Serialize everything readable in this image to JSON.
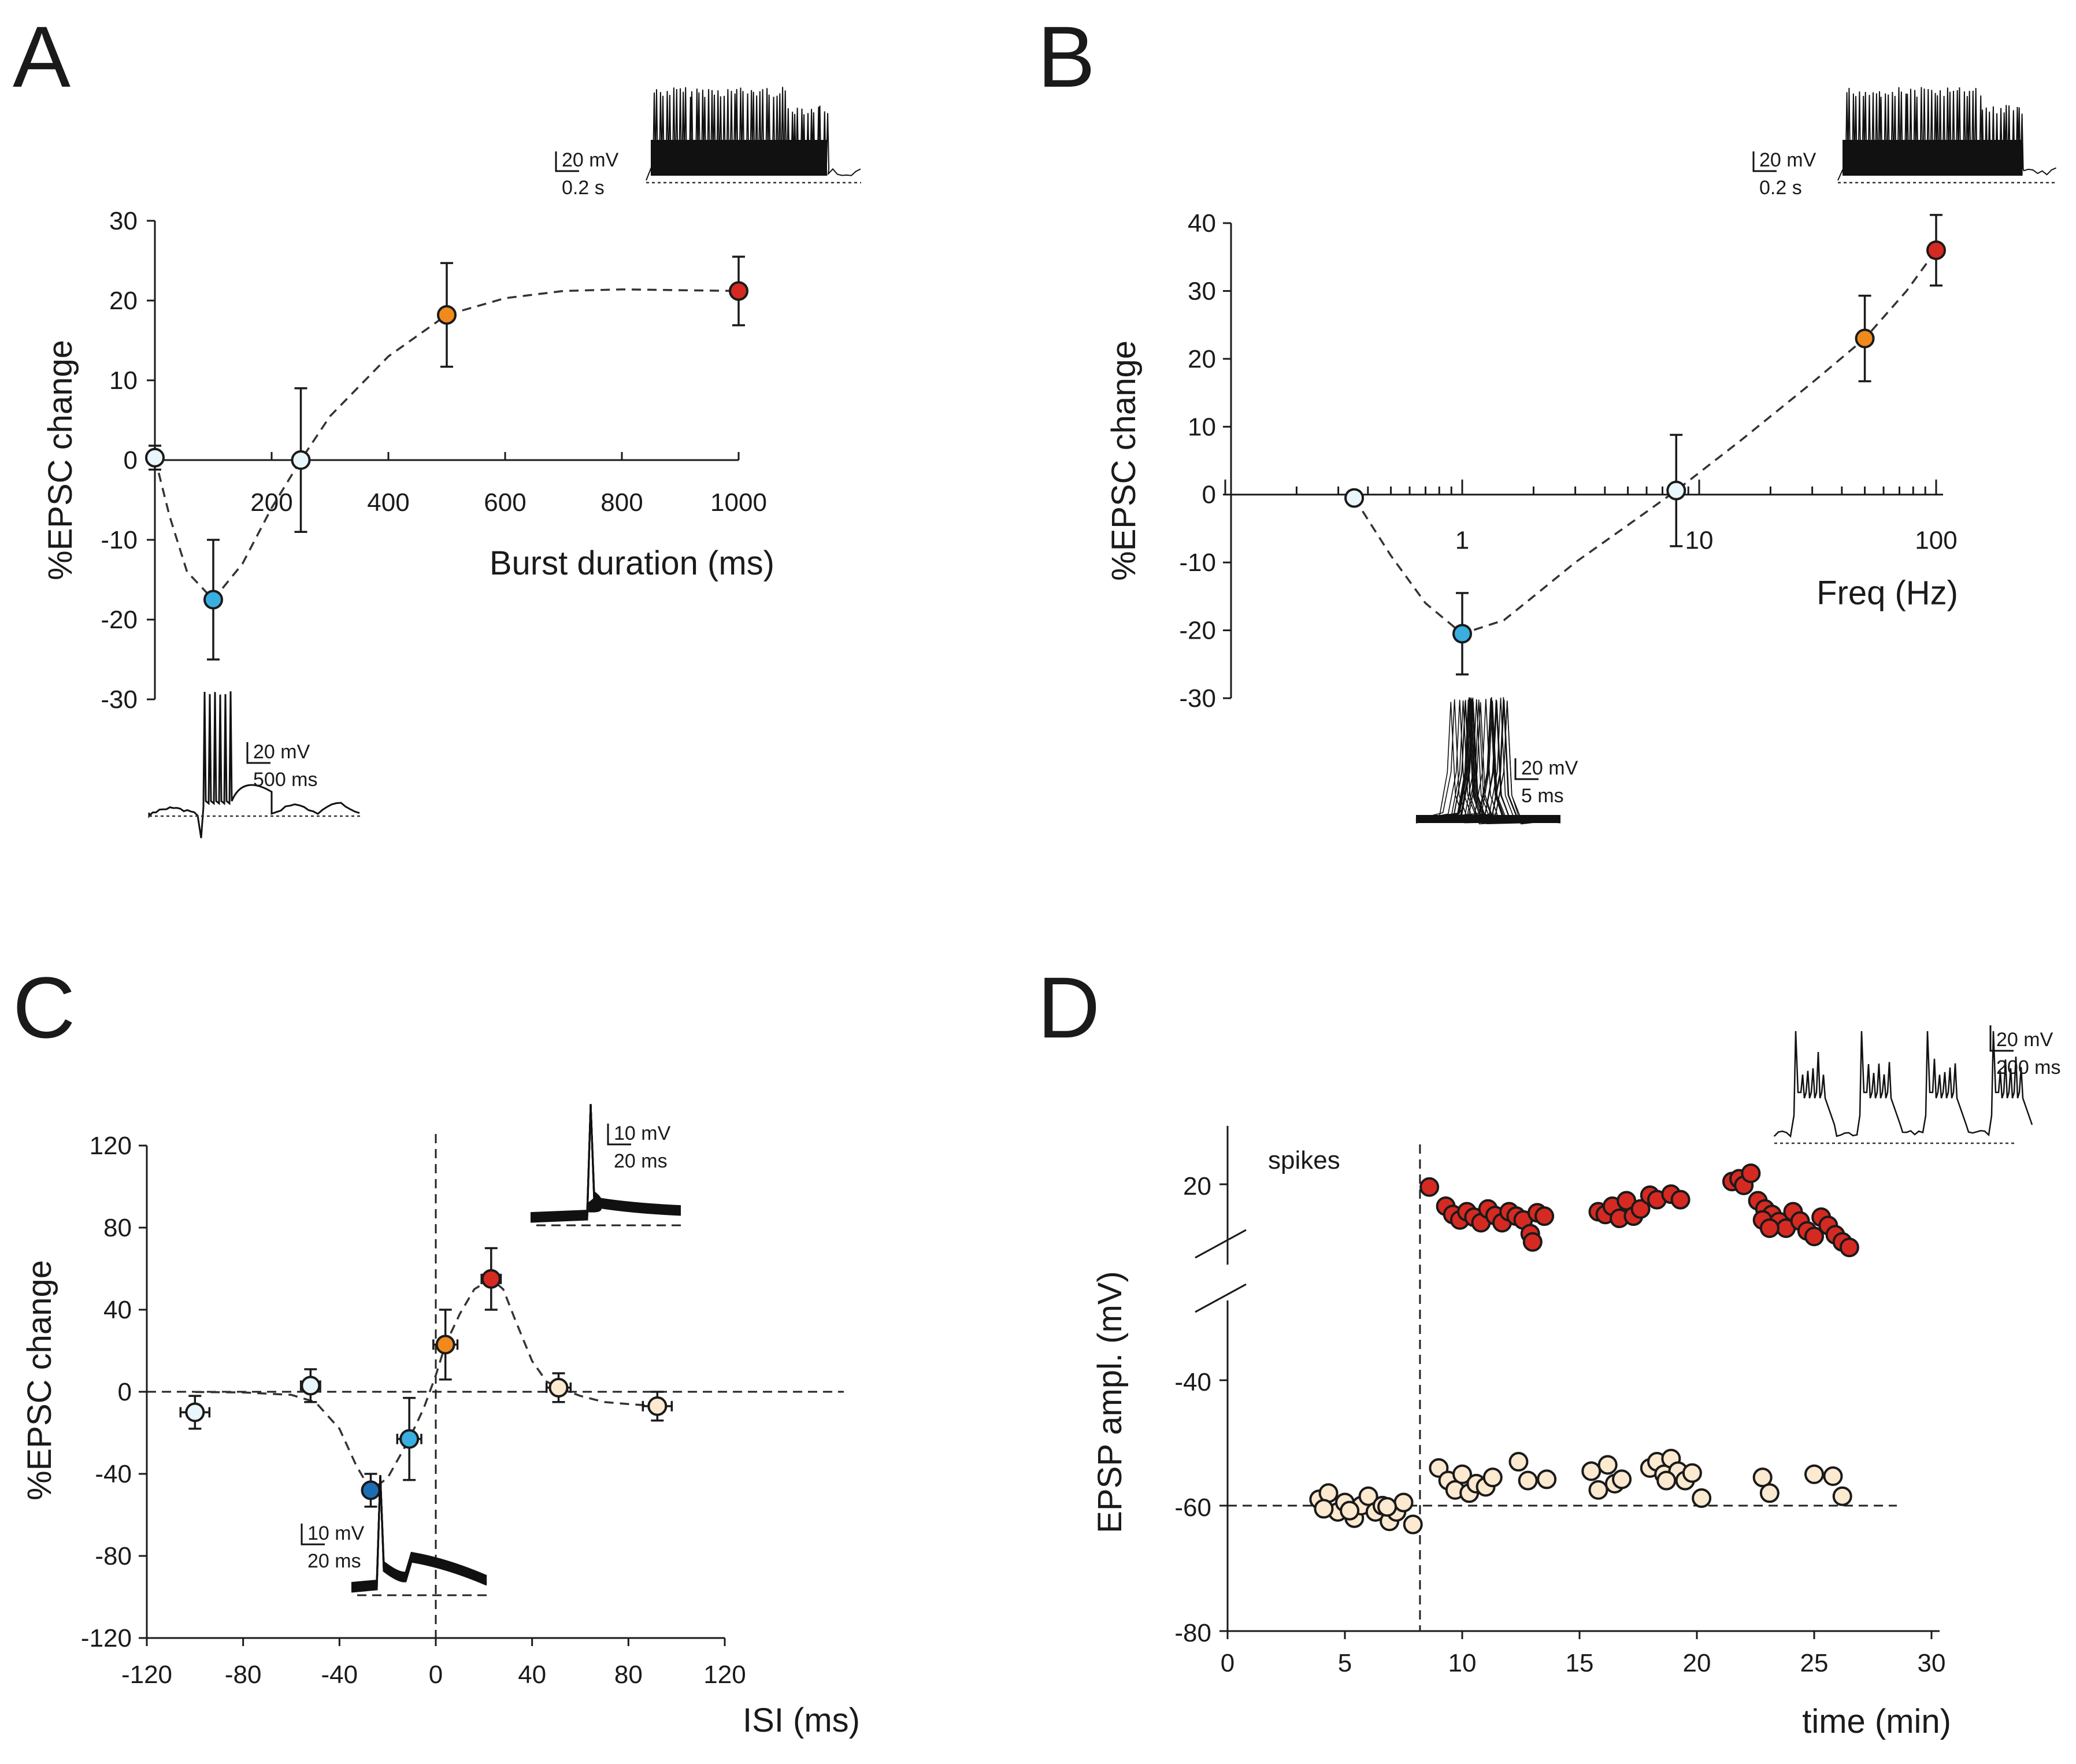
{
  "colors": {
    "red": "#d52a22",
    "orange": "#f08a1c",
    "light_blue": "#3aaee0",
    "dark_blue": "#1d6db4",
    "pale_blue": "#e9f6fb",
    "beige": "#fbe9d0",
    "ink": "#1a1a1a"
  },
  "chart_data": [
    {
      "panel": "A",
      "type": "scatter",
      "xlabel": "Burst duration (ms)",
      "ylabel": "%EPSC change",
      "xlim": [
        0,
        1000
      ],
      "ylim": [
        -30,
        30
      ],
      "x_ticks": [
        "200",
        "400",
        "600",
        "800",
        "1000"
      ],
      "y_ticks": [
        "30",
        "20",
        "10",
        "0",
        "-10",
        "-20",
        "-30"
      ],
      "points": [
        {
          "x": 0,
          "y": 0.3,
          "err": 1.5,
          "color": "pale_blue"
        },
        {
          "x": 100,
          "y": -17.5,
          "err": 7.5,
          "color": "light_blue"
        },
        {
          "x": 250,
          "y": 0,
          "err": 9,
          "color": "pale_blue"
        },
        {
          "x": 500,
          "y": 18.2,
          "err": 6.5,
          "color": "orange"
        },
        {
          "x": 1000,
          "y": 21.2,
          "err": 4.3,
          "color": "red"
        }
      ],
      "fit": [
        [
          0,
          0.3
        ],
        [
          25,
          -7
        ],
        [
          55,
          -14
        ],
        [
          100,
          -17.5
        ],
        [
          150,
          -13
        ],
        [
          200,
          -6
        ],
        [
          250,
          0
        ],
        [
          300,
          5.5
        ],
        [
          400,
          13
        ],
        [
          500,
          18.2
        ],
        [
          600,
          20.3
        ],
        [
          700,
          21.2
        ],
        [
          800,
          21.4
        ],
        [
          900,
          21.3
        ],
        [
          1000,
          21.2
        ]
      ],
      "insets": [
        {
          "scale_voltage": "20 mV",
          "scale_time": "0.2 s"
        },
        {
          "scale_voltage": "20 mV",
          "scale_time": "500 ms"
        }
      ]
    },
    {
      "panel": "B",
      "type": "scatter",
      "xscale": "log",
      "xlabel": "Freq (Hz)",
      "ylabel": "%EPSC change",
      "xlim": [
        0.1,
        100
      ],
      "ylim": [
        -30,
        40
      ],
      "x_ticks": [
        "1",
        "10",
        "100"
      ],
      "y_ticks": [
        "40",
        "30",
        "20",
        "10",
        "0",
        "-10",
        "-20",
        "-30"
      ],
      "points": [
        {
          "x": 0.35,
          "y": -0.5,
          "err": 1,
          "color": "pale_blue"
        },
        {
          "x": 1,
          "y": -20.5,
          "err": 6,
          "color": "light_blue"
        },
        {
          "x": 8,
          "y": 0.6,
          "err": 8.2,
          "color": "pale_blue"
        },
        {
          "x": 50,
          "y": 23,
          "err": 6.3,
          "color": "orange"
        },
        {
          "x": 100,
          "y": 36,
          "err": 5.2,
          "color": "red"
        }
      ],
      "fit": [
        [
          0.35,
          -0.5
        ],
        [
          0.5,
          -9
        ],
        [
          0.7,
          -16
        ],
        [
          1,
          -20.5
        ],
        [
          1.5,
          -18.5
        ],
        [
          2,
          -15
        ],
        [
          3,
          -10
        ],
        [
          5,
          -4.5
        ],
        [
          8,
          0.6
        ],
        [
          15,
          8
        ],
        [
          30,
          16.5
        ],
        [
          50,
          23
        ],
        [
          75,
          30
        ],
        [
          100,
          36
        ]
      ],
      "insets": [
        {
          "scale_voltage": "20 mV",
          "scale_time": "0.2 s"
        },
        {
          "scale_voltage": "20 mV",
          "scale_time": "5 ms"
        }
      ]
    },
    {
      "panel": "C",
      "type": "scatter",
      "xlabel": "ISI (ms)",
      "ylabel": "%EPSC change",
      "xlim": [
        -120,
        120
      ],
      "ylim": [
        -120,
        120
      ],
      "x_ticks": [
        "-120",
        "-80",
        "-40",
        "0",
        "40",
        "80",
        "120"
      ],
      "y_ticks": [
        "120",
        "80",
        "40",
        "0",
        "-40",
        "-80",
        "-120"
      ],
      "points": [
        {
          "x": -100,
          "y": -10,
          "xerr": 6,
          "err": 8,
          "color": "pale_blue"
        },
        {
          "x": -52,
          "y": 3,
          "xerr": 4,
          "err": 8,
          "color": "pale_blue"
        },
        {
          "x": -27,
          "y": -48,
          "xerr": 3,
          "err": 8,
          "color": "dark_blue"
        },
        {
          "x": -11,
          "y": -23,
          "xerr": 5,
          "err": 20,
          "color": "light_blue"
        },
        {
          "x": 4,
          "y": 23,
          "xerr": 5,
          "err": 17,
          "color": "orange"
        },
        {
          "x": 23,
          "y": 55,
          "xerr": 4,
          "err": 15,
          "color": "red"
        },
        {
          "x": 51,
          "y": 2,
          "xerr": 5,
          "err": 7,
          "color": "beige"
        },
        {
          "x": 92,
          "y": -7,
          "xerr": 6,
          "err": 7,
          "color": "beige"
        }
      ],
      "fit": [
        [
          -100,
          -0.1
        ],
        [
          -80,
          -0.3
        ],
        [
          -60,
          -1.5
        ],
        [
          -50,
          -5
        ],
        [
          -40,
          -18
        ],
        [
          -33,
          -36
        ],
        [
          -27,
          -48
        ],
        [
          -20,
          -42
        ],
        [
          -11,
          -23
        ],
        [
          -5,
          -8
        ],
        [
          0,
          8
        ],
        [
          4,
          23
        ],
        [
          10,
          38
        ],
        [
          16,
          50
        ],
        [
          23,
          55
        ],
        [
          28,
          50
        ],
        [
          33,
          35
        ],
        [
          40,
          15
        ],
        [
          46,
          5
        ],
        [
          51,
          2
        ],
        [
          60,
          -2
        ],
        [
          70,
          -5
        ],
        [
          80,
          -6
        ],
        [
          92,
          -7
        ]
      ],
      "reference_lines": {
        "y": 0,
        "x": 0
      },
      "insets": [
        {
          "scale_voltage": "10 mV",
          "scale_time": "20 ms"
        },
        {
          "scale_voltage": "10 mV",
          "scale_time": "20 ms"
        }
      ]
    },
    {
      "panel": "D",
      "type": "scatter",
      "xlabel": "time (min)",
      "ylabel": "EPSP ampl. (mV)",
      "xlim": [
        0,
        30
      ],
      "broken_y_axis": true,
      "y_ticks": [
        "20",
        "-40",
        "-60",
        "-80"
      ],
      "annotation": "spikes",
      "event_time": 8.2,
      "baseline_mV": -60,
      "series": [
        {
          "name": "spike peaks",
          "color": "red",
          "points": [
            [
              8.6,
              19.5
            ],
            [
              9.3,
              16
            ],
            [
              9.6,
              14.5
            ],
            [
              9.9,
              13.5
            ],
            [
              10.2,
              15
            ],
            [
              10.5,
              14
            ],
            [
              10.8,
              13
            ],
            [
              11.1,
              15.5
            ],
            [
              11.4,
              14.3
            ],
            [
              11.7,
              13
            ],
            [
              12.0,
              15
            ],
            [
              12.3,
              14.2
            ],
            [
              12.6,
              13.5
            ],
            [
              12.9,
              11
            ],
            [
              13.2,
              14.8
            ],
            [
              13.5,
              14.2
            ],
            [
              13.0,
              9.5
            ],
            [
              15.8,
              15
            ],
            [
              16.1,
              14.5
            ],
            [
              16.4,
              16
            ],
            [
              16.7,
              13.8
            ],
            [
              17.0,
              17
            ],
            [
              17.3,
              14.2
            ],
            [
              17.6,
              15.5
            ],
            [
              18.0,
              18
            ],
            [
              18.3,
              17.2
            ],
            [
              18.9,
              18.2
            ],
            [
              19.3,
              17.2
            ],
            [
              21.5,
              20.5
            ],
            [
              21.8,
              21
            ],
            [
              22.0,
              19.8
            ],
            [
              22.3,
              22
            ],
            [
              22.6,
              17
            ],
            [
              22.9,
              15.5
            ],
            [
              23.2,
              14.5
            ],
            [
              23.5,
              13.2
            ],
            [
              23.8,
              12
            ],
            [
              24.1,
              15
            ],
            [
              24.4,
              13.3
            ],
            [
              24.7,
              11.5
            ],
            [
              25.0,
              10.5
            ],
            [
              25.3,
              14
            ],
            [
              25.6,
              12.5
            ],
            [
              25.9,
              10.8
            ],
            [
              26.2,
              9.5
            ],
            [
              26.5,
              8.5
            ],
            [
              22.8,
              13.5
            ],
            [
              23.1,
              12
            ]
          ]
        },
        {
          "name": "EPSP",
          "color": "beige",
          "points": [
            [
              3.9,
              -59
            ],
            [
              4.3,
              -58
            ],
            [
              4.7,
              -61
            ],
            [
              5.0,
              -59.5
            ],
            [
              5.4,
              -62
            ],
            [
              5.7,
              -60
            ],
            [
              6.0,
              -58.5
            ],
            [
              6.3,
              -61
            ],
            [
              6.6,
              -60
            ],
            [
              6.9,
              -62.5
            ],
            [
              7.2,
              -61
            ],
            [
              7.5,
              -59.5
            ],
            [
              7.9,
              -63
            ],
            [
              4.1,
              -60.5
            ],
            [
              5.2,
              -60.8
            ],
            [
              6.8,
              -60.2
            ],
            [
              9.0,
              -54
            ],
            [
              9.4,
              -56
            ],
            [
              9.7,
              -57.5
            ],
            [
              10.0,
              -55
            ],
            [
              10.3,
              -58
            ],
            [
              10.6,
              -56.5
            ],
            [
              11.0,
              -57
            ],
            [
              11.3,
              -55.5
            ],
            [
              12.4,
              -53
            ],
            [
              12.8,
              -56
            ],
            [
              13.6,
              -55.8
            ],
            [
              15.5,
              -54.5
            ],
            [
              15.8,
              -57.5
            ],
            [
              16.2,
              -53.5
            ],
            [
              16.5,
              -56.5
            ],
            [
              16.8,
              -55.8
            ],
            [
              18.0,
              -54
            ],
            [
              18.3,
              -53
            ],
            [
              18.6,
              -55
            ],
            [
              18.9,
              -52.5
            ],
            [
              19.2,
              -54.5
            ],
            [
              19.5,
              -56
            ],
            [
              19.8,
              -54.8
            ],
            [
              20.2,
              -58.8
            ],
            [
              22.8,
              -55.5
            ],
            [
              23.1,
              -58
            ],
            [
              25.0,
              -55
            ],
            [
              25.8,
              -55.3
            ],
            [
              26.2,
              -58.5
            ],
            [
              18.7,
              -56
            ]
          ]
        }
      ],
      "insets": [
        {
          "scale_voltage": "20 mV",
          "scale_time": "200 ms"
        }
      ]
    }
  ]
}
